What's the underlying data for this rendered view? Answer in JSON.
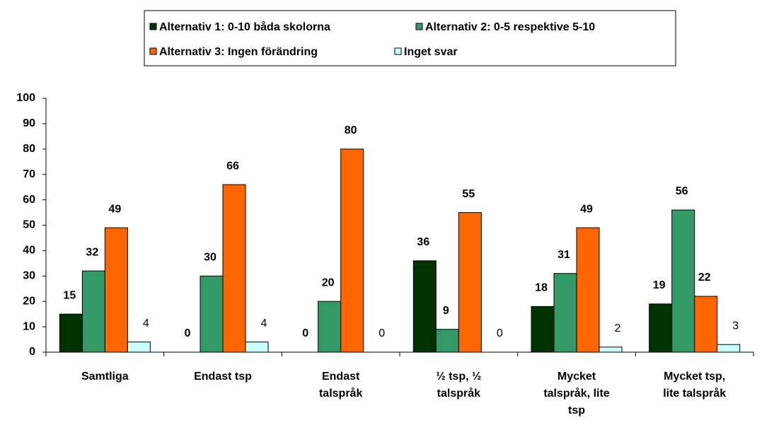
{
  "chart_data": {
    "type": "bar",
    "categories": [
      "Samtliga",
      "Endast tsp",
      "Endast\ntalspråk",
      "½ tsp, ½\ntalspråk",
      "Mycket\ntalspråk, lite\ntsp",
      "Mycket tsp,\nlite talspråk"
    ],
    "series": [
      {
        "name": "Alternativ 1: 0-10 båda skolorna",
        "color": "#003300",
        "values": [
          15,
          0,
          0,
          36,
          18,
          19
        ]
      },
      {
        "name": "Alternativ 2: 0-5 respektive 5-10",
        "color": "#339966",
        "values": [
          32,
          30,
          20,
          9,
          31,
          56
        ]
      },
      {
        "name": "Alternativ 3: Ingen förändring",
        "color": "#ff6600",
        "values": [
          49,
          66,
          80,
          55,
          49,
          22
        ]
      },
      {
        "name": "Inget svar",
        "color": "#ccffff",
        "values": [
          4,
          4,
          0,
          0,
          2,
          3
        ]
      }
    ],
    "ylim": [
      0,
      100
    ],
    "yticks": [
      0,
      10,
      20,
      30,
      40,
      50,
      60,
      70,
      80,
      90,
      100
    ],
    "grid": false
  }
}
